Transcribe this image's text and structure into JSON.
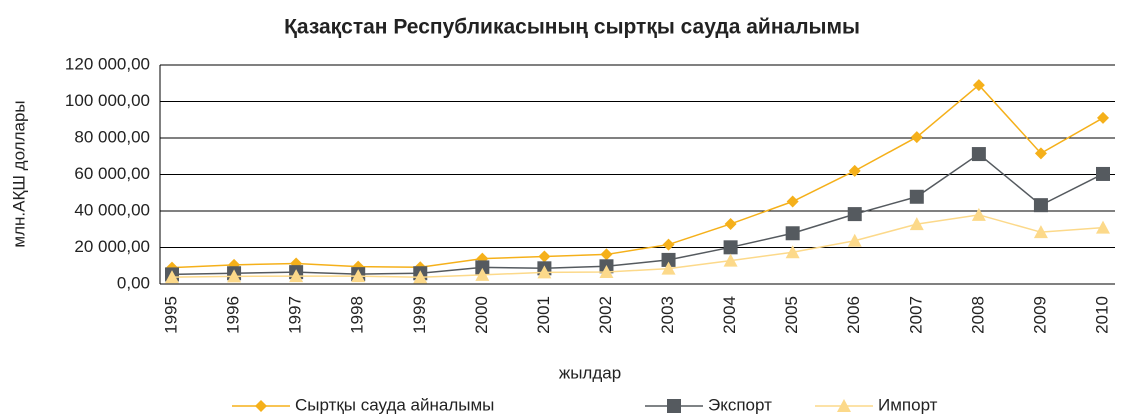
{
  "chart_data": {
    "type": "line",
    "title": "Қазақстан Республикасының сыртқы сауда айналымы",
    "x_label": "жылдар",
    "y_label": "млн.АҚШ доллары",
    "categories": [
      "1995",
      "1996",
      "1997",
      "1998",
      "1999",
      "2000",
      "2001",
      "2002",
      "2003",
      "2004",
      "2005",
      "2006",
      "2007",
      "2008",
      "2009",
      "2010"
    ],
    "series": [
      {
        "name": "Сыртқы сауда айналымы",
        "color": "#f5b01a",
        "marker": "diamond",
        "values": [
          9000,
          10500,
          11200,
          9500,
          9200,
          13900,
          15100,
          16200,
          21600,
          32900,
          45200,
          62000,
          80500,
          109000,
          71600,
          91000
        ]
      },
      {
        "name": "Экспорт",
        "color": "#555a5f",
        "marker": "square",
        "values": [
          5250,
          5900,
          6500,
          5400,
          5900,
          9100,
          8600,
          9700,
          13200,
          20100,
          27800,
          38300,
          47800,
          71200,
          43200,
          60300
        ]
      },
      {
        "name": "Импорт",
        "color": "#fcd98a",
        "marker": "triangle",
        "values": [
          3800,
          4200,
          4300,
          4300,
          3700,
          5000,
          6400,
          6600,
          8400,
          12800,
          17400,
          23700,
          32800,
          37900,
          28400,
          30900
        ]
      }
    ],
    "ylim": [
      0,
      120000
    ],
    "yticks": [
      {
        "value": 0,
        "label": "0,00"
      },
      {
        "value": 20000,
        "label": "20 000,00"
      },
      {
        "value": 40000,
        "label": "40 000,00"
      },
      {
        "value": 60000,
        "label": "60 000,00"
      },
      {
        "value": 80000,
        "label": "80 000,00"
      },
      {
        "value": 100000,
        "label": "100 000,00"
      },
      {
        "value": 120000,
        "label": "120 000,00"
      }
    ],
    "grid": true,
    "legend": "bottom"
  }
}
